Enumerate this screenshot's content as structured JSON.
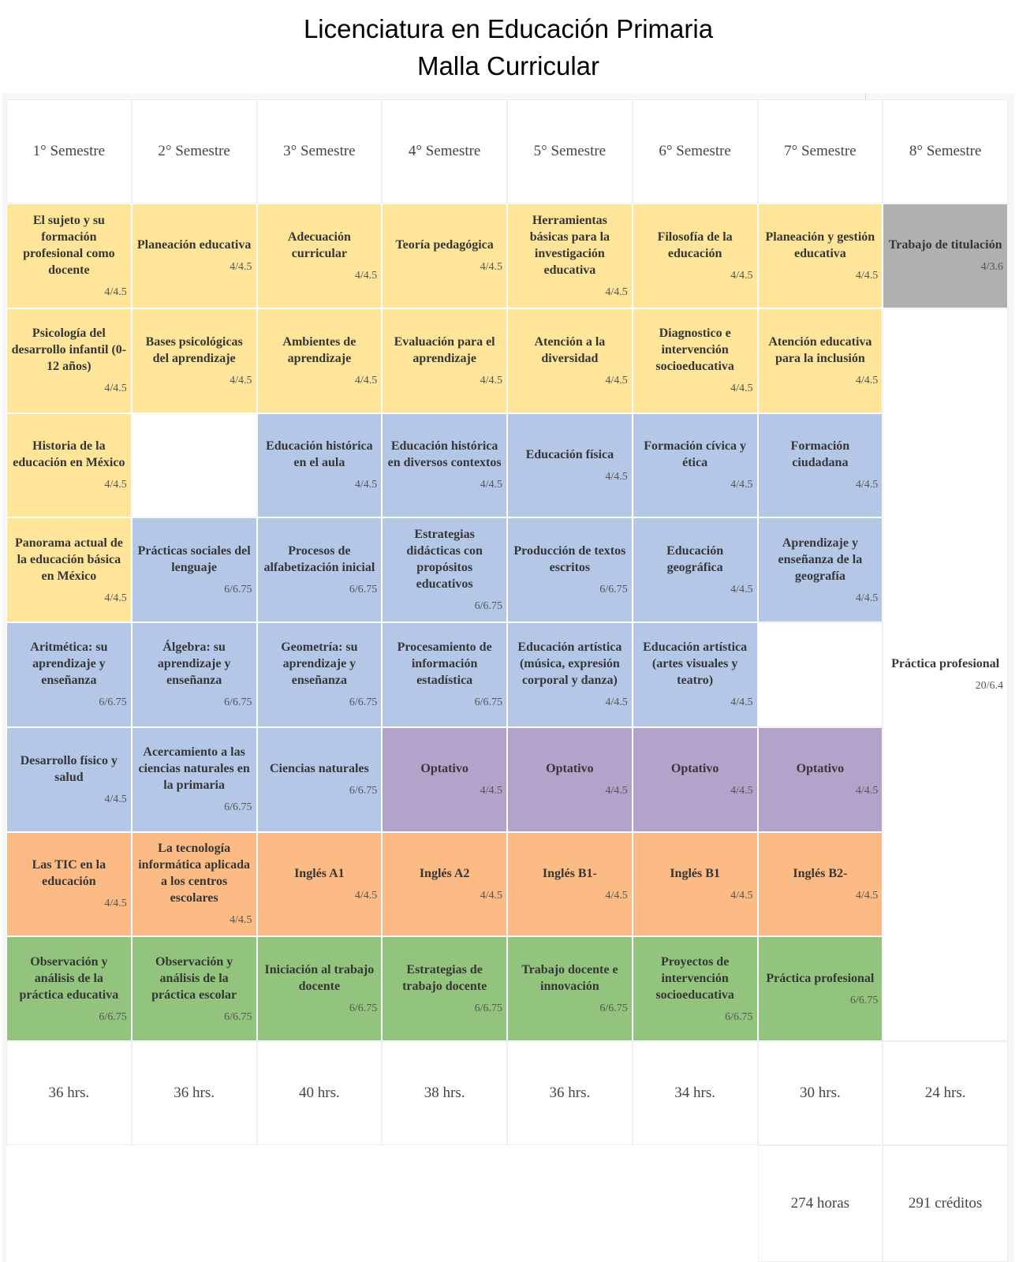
{
  "title": {
    "line1": "Licenciatura en Educación Primaria",
    "line2": "Malla Curricular"
  },
  "palette": {
    "yellow": "#FFE599",
    "blue": "#B4C7E7",
    "purple": "#B3A2C9",
    "orange": "#FCBA85",
    "green": "#93C47D",
    "gray": "#B0B0B0",
    "white": "#FFFFFF"
  },
  "curriculum": {
    "semesters": [
      "1° Semestre",
      "2° Semestre",
      "3° Semestre",
      "4° Semestre",
      "5° Semestre",
      "6° Semestre",
      "7° Semestre",
      "8° Semestre"
    ],
    "rows": [
      [
        {
          "name": "El sujeto y su formación profesional como docente",
          "credits": "4/4.5",
          "color": "yellow"
        },
        {
          "name": "Planeación educativa",
          "credits": "4/4.5",
          "color": "yellow"
        },
        {
          "name": "Adecuación curricular",
          "credits": "4/4.5",
          "color": "yellow"
        },
        {
          "name": "Teoría pedagógica",
          "credits": "4/4.5",
          "color": "yellow"
        },
        {
          "name": "Herramientas básicas para la investigación educativa",
          "credits": "4/4.5",
          "color": "yellow"
        },
        {
          "name": "Filosofía de la educación",
          "credits": "4/4.5",
          "color": "yellow"
        },
        {
          "name": "Planeación y gestión educativa",
          "credits": "4/4.5",
          "color": "yellow"
        },
        {
          "name": "Trabajo de titulación",
          "credits": "4/3.6",
          "color": "gray"
        }
      ],
      [
        {
          "name": "Psicología del desarrollo infantil (0-12 años)",
          "credits": "4/4.5",
          "color": "yellow"
        },
        {
          "name": "Bases psicológicas del aprendizaje",
          "credits": "4/4.5",
          "color": "yellow"
        },
        {
          "name": "Ambientes de aprendizaje",
          "credits": "4/4.5",
          "color": "yellow"
        },
        {
          "name": "Evaluación para el aprendizaje",
          "credits": "4/4.5",
          "color": "yellow"
        },
        {
          "name": "Atención a la diversidad",
          "credits": "4/4.5",
          "color": "yellow"
        },
        {
          "name": "Diagnostico e intervención socioeducativa",
          "credits": "4/4.5",
          "color": "yellow"
        },
        {
          "name": "Atención educativa para la inclusión",
          "credits": "4/4.5",
          "color": "yellow"
        },
        {
          "name": "Práctica profesional",
          "credits": "20/6.4",
          "color": "white",
          "rowspan": 7
        }
      ],
      [
        {
          "name": "Historia de la educación en México",
          "credits": "4/4.5",
          "color": "yellow"
        },
        null,
        {
          "name": "Educación histórica en el aula",
          "credits": "4/4.5",
          "color": "blue"
        },
        {
          "name": "Educación histórica en diversos contextos",
          "credits": "4/4.5",
          "color": "blue"
        },
        {
          "name": "Educación física",
          "credits": "4/4.5",
          "color": "blue"
        },
        {
          "name": "Formación cívica y ética",
          "credits": "4/4.5",
          "color": "blue"
        },
        {
          "name": "Formación ciudadana",
          "credits": "4/4.5",
          "color": "blue"
        }
      ],
      [
        {
          "name": "Panorama actual de la educación básica en México",
          "credits": "4/4.5",
          "color": "yellow"
        },
        {
          "name": "Prácticas sociales del lenguaje",
          "credits": "6/6.75",
          "color": "blue"
        },
        {
          "name": "Procesos de alfabetización inicial",
          "credits": "6/6.75",
          "color": "blue"
        },
        {
          "name": "Estrategias didácticas con propósitos educativos",
          "credits": "6/6.75",
          "color": "blue"
        },
        {
          "name": "Producción de textos escritos",
          "credits": "6/6.75",
          "color": "blue"
        },
        {
          "name": "Educación geográfica",
          "credits": "4/4.5",
          "color": "blue"
        },
        {
          "name": "Aprendizaje y enseñanza de la geografía",
          "credits": "4/4.5",
          "color": "blue"
        }
      ],
      [
        {
          "name": "Aritmética: su aprendizaje y enseñanza",
          "credits": "6/6.75",
          "color": "blue"
        },
        {
          "name": "Álgebra: su aprendizaje y enseñanza",
          "credits": "6/6.75",
          "color": "blue"
        },
        {
          "name": "Geometría: su aprendizaje y enseñanza",
          "credits": "6/6.75",
          "color": "blue"
        },
        {
          "name": "Procesamiento de información estadística",
          "credits": "6/6.75",
          "color": "blue"
        },
        {
          "name": "Educación artística (música, expresión corporal y danza)",
          "credits": "4/4.5",
          "color": "blue"
        },
        {
          "name": "Educación artística (artes visuales y teatro)",
          "credits": "4/4.5",
          "color": "blue"
        },
        null
      ],
      [
        {
          "name": "Desarrollo físico y salud",
          "credits": "4/4.5",
          "color": "blue"
        },
        {
          "name": "Acercamiento a las ciencias naturales en la primaria",
          "credits": "6/6.75",
          "color": "blue"
        },
        {
          "name": "Ciencias naturales",
          "credits": "6/6.75",
          "color": "blue"
        },
        {
          "name": "Optativo",
          "credits": "4/4.5",
          "color": "purple"
        },
        {
          "name": "Optativo",
          "credits": "4/4.5",
          "color": "purple"
        },
        {
          "name": "Optativo",
          "credits": "4/4.5",
          "color": "purple"
        },
        {
          "name": "Optativo",
          "credits": "4/4.5",
          "color": "purple"
        }
      ],
      [
        {
          "name": "Las TIC en la educación",
          "credits": "4/4.5",
          "color": "orange"
        },
        {
          "name": "La tecnología informática aplicada a los centros escolares",
          "credits": "4/4.5",
          "color": "orange"
        },
        {
          "name": "Inglés A1",
          "credits": "4/4.5",
          "color": "orange"
        },
        {
          "name": "Inglés A2",
          "credits": "4/4.5",
          "color": "orange"
        },
        {
          "name": "Inglés B1-",
          "credits": "4/4.5",
          "color": "orange"
        },
        {
          "name": "Inglés B1",
          "credits": "4/4.5",
          "color": "orange"
        },
        {
          "name": "Inglés B2-",
          "credits": "4/4.5",
          "color": "orange"
        }
      ],
      [
        {
          "name": "Observación y análisis de la práctica educativa",
          "credits": "6/6.75",
          "color": "green"
        },
        {
          "name": "Observación y análisis de la práctica escolar",
          "credits": "6/6.75",
          "color": "green"
        },
        {
          "name": "Iniciación al trabajo docente",
          "credits": "6/6.75",
          "color": "green"
        },
        {
          "name": "Estrategias de trabajo docente",
          "credits": "6/6.75",
          "color": "green"
        },
        {
          "name": "Trabajo docente e innovación",
          "credits": "6/6.75",
          "color": "green"
        },
        {
          "name": "Proyectos de intervención socioeducativa",
          "credits": "6/6.75",
          "color": "green"
        },
        {
          "name": "Práctica profesional",
          "credits": "6/6.75",
          "color": "green"
        }
      ]
    ],
    "hours": [
      "36 hrs.",
      "36 hrs.",
      "40 hrs.",
      "38 hrs.",
      "36 hrs.",
      "34 hrs.",
      "30 hrs.",
      "24 hrs."
    ],
    "totals": {
      "hours": "274 horas",
      "credits": "291 créditos"
    }
  }
}
